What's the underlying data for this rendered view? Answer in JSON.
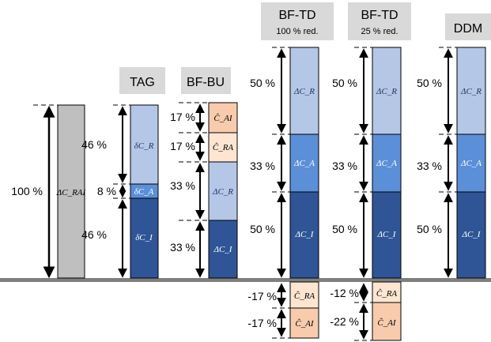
{
  "colors": {
    "header_bg": "#d9d9d9",
    "baseline": "#7f7f7f",
    "grey_bar": "#bfbfbf",
    "light_blue": "#b4c7e7",
    "mid_blue": "#5b8fd8",
    "dark_blue": "#2f5597",
    "light_peach": "#fde5d1",
    "peach": "#f8cbad",
    "bar_stroke": "#000000"
  },
  "headers": {
    "tag": "TAG",
    "bf_bu": "BF-BU",
    "bf_td_100": "BF-TD",
    "bf_td_100_sub": "100 % red.",
    "bf_td_25": "BF-TD",
    "bf_td_25_sub": "25 % red.",
    "ddm": "DDM"
  },
  "total_column": {
    "percent": "100 %",
    "bar_label": "ΔC_RAI"
  },
  "tag": {
    "segments": [
      {
        "name": "delta-c-r",
        "percent": "46 %",
        "label": "δC_R"
      },
      {
        "name": "delta-c-a",
        "percent": "8 %",
        "label": "δC_A"
      },
      {
        "name": "delta-c-i",
        "percent": "46 %",
        "label": "δC_I"
      }
    ]
  },
  "bf_bu": {
    "segments": [
      {
        "name": "c-hat-ai",
        "percent": "17 %",
        "label": "Ĉ_AI"
      },
      {
        "name": "c-hat-ra",
        "percent": "17 %",
        "label": "Ĉ_RA"
      },
      {
        "name": "delta-c-r",
        "percent": "33 %",
        "label": "ΔC_R"
      },
      {
        "name": "delta-c-i",
        "percent": "33 %",
        "label": "ΔC_I"
      }
    ]
  },
  "bf_td_100": {
    "segments": [
      {
        "name": "delta-c-r",
        "percent": "50 %",
        "label": "ΔC_R"
      },
      {
        "name": "delta-c-a",
        "percent": "33 %",
        "label": "ΔC_A"
      },
      {
        "name": "delta-c-i",
        "percent": "50 %",
        "label": "ΔC_I"
      }
    ],
    "negative": [
      {
        "name": "c-hat-ra",
        "percent": "-17 %",
        "label": "Ĉ_RA"
      },
      {
        "name": "c-hat-ai",
        "percent": "-17 %",
        "label": "Ĉ_AI"
      }
    ]
  },
  "bf_td_25": {
    "segments": [
      {
        "name": "delta-c-r",
        "percent": "50 %",
        "label": "ΔC_R"
      },
      {
        "name": "delta-c-a",
        "percent": "33 %",
        "label": "ΔC_A"
      },
      {
        "name": "delta-c-i",
        "percent": "50 %",
        "label": "ΔC_I"
      }
    ],
    "negative": [
      {
        "name": "c-hat-ra",
        "percent": "-12 %",
        "label": "Ĉ_RA"
      },
      {
        "name": "c-hat-ai",
        "percent": "-22 %",
        "label": "Ĉ_AI"
      }
    ]
  },
  "ddm": {
    "segments": [
      {
        "name": "delta-c-r",
        "percent": "50 %",
        "label": "ΔC_R"
      },
      {
        "name": "delta-c-a",
        "percent": "33 %",
        "label": "ΔC_A"
      },
      {
        "name": "delta-c-i",
        "percent": "50 %",
        "label": "ΔC_I"
      }
    ]
  }
}
